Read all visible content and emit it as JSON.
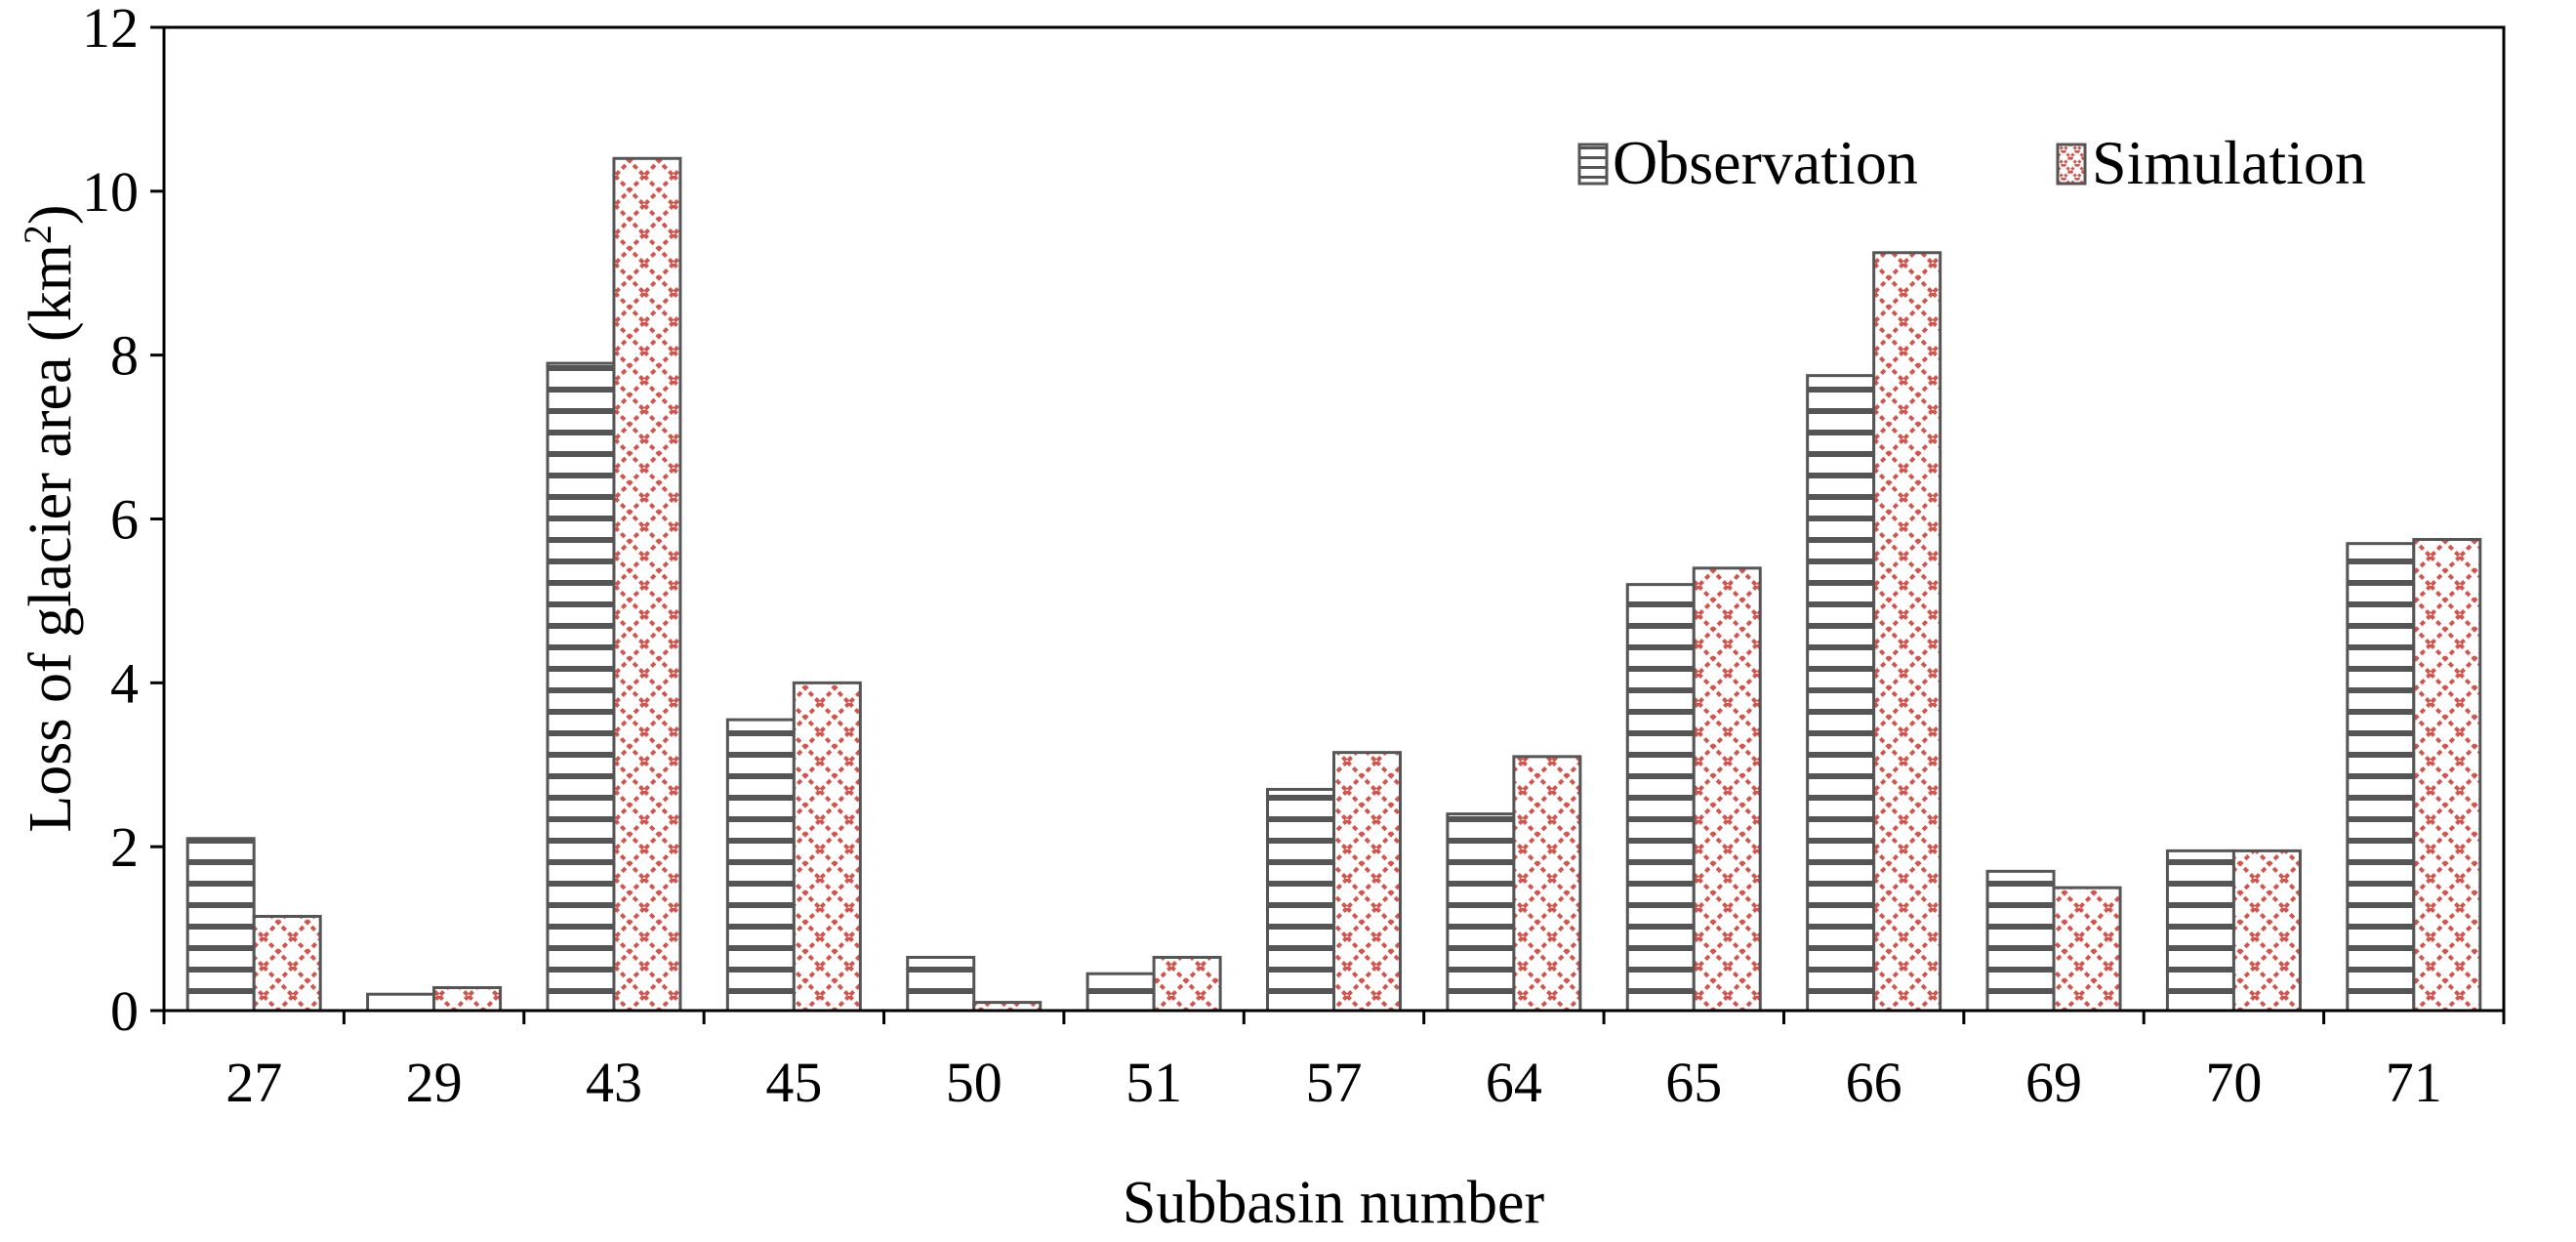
{
  "chart_data": {
    "type": "bar",
    "title": "",
    "xlabel": "Subbasin number",
    "ylabel": {
      "text": "Loss of glacier area (km",
      "sup": "2",
      "close": ")"
    },
    "ylim": [
      0,
      12
    ],
    "yticks": [
      "0",
      "2",
      "4",
      "6",
      "8",
      "10",
      "12"
    ],
    "grid": false,
    "legend_position": "top-right",
    "categories": [
      "27",
      "29",
      "43",
      "45",
      "50",
      "51",
      "57",
      "64",
      "65",
      "66",
      "69",
      "70",
      "71"
    ],
    "series": [
      {
        "name": "Observation",
        "pattern": "horizontal-lines",
        "color": "#555555",
        "values": [
          2.1,
          0.2,
          7.9,
          3.55,
          0.65,
          0.45,
          2.7,
          2.4,
          5.2,
          7.75,
          1.7,
          1.95,
          5.7
        ]
      },
      {
        "name": "Simulation",
        "pattern": "crosshatch",
        "color": "#d2554d",
        "values": [
          1.15,
          0.28,
          10.4,
          4.0,
          0.1,
          0.65,
          3.15,
          3.1,
          5.4,
          9.25,
          1.5,
          1.95,
          5.75
        ]
      }
    ]
  }
}
